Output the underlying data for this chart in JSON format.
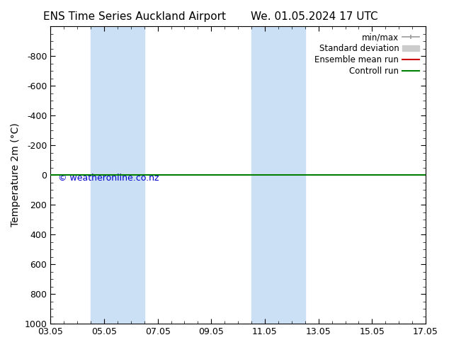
{
  "title_left": "ENS Time Series Auckland Airport",
  "title_right": "We. 01.05.2024 17 UTC",
  "ylabel": "Temperature 2m (°C)",
  "watermark": "© weatheronline.co.nz",
  "ylim_min": -1000,
  "ylim_max": 1000,
  "yticks": [
    -800,
    -600,
    -400,
    -200,
    0,
    200,
    400,
    600,
    800,
    1000
  ],
  "xtick_labels": [
    "03.05",
    "05.05",
    "07.05",
    "09.05",
    "11.05",
    "13.05",
    "15.05",
    "17.05"
  ],
  "xtick_positions": [
    0,
    2,
    4,
    6,
    8,
    10,
    12,
    14
  ],
  "shaded_bands": [
    {
      "x_start": 1.5,
      "x_end": 3.5
    },
    {
      "x_start": 7.5,
      "x_end": 9.5
    }
  ],
  "horizontal_line_y": 0,
  "line_green": "#008000",
  "line_red": "#cc0000",
  "bg_color": "#ffffff",
  "plot_bg_color": "#ffffff",
  "shade_color": "#cce0f5",
  "watermark_color": "#0000cc",
  "legend_minmax_color": "#999999",
  "legend_std_color": "#cccccc",
  "title_fontsize": 11,
  "tick_fontsize": 9,
  "ylabel_fontsize": 10
}
